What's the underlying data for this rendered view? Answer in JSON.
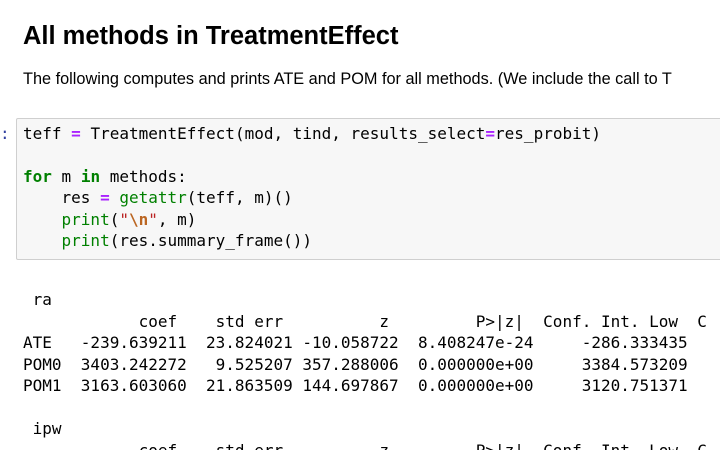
{
  "markdown": {
    "heading": "All methods in TreatmentEffect",
    "intro": "The following computes and prints ATE and POM for all methods. (We include the call to T"
  },
  "cell": {
    "prompt": ":",
    "code_lines": [
      [
        [
          "teff ",
          ""
        ],
        [
          "=",
          "op"
        ],
        [
          " TreatmentEffect(mod, tind, results_select",
          ""
        ],
        [
          "=",
          "op"
        ],
        [
          "res_probit)",
          ""
        ]
      ],
      [],
      [
        [
          "for",
          "kw"
        ],
        [
          " m ",
          ""
        ],
        [
          "in",
          "kw"
        ],
        [
          " methods:",
          ""
        ]
      ],
      [
        [
          "    res ",
          ""
        ],
        [
          "=",
          "op"
        ],
        [
          " ",
          ""
        ],
        [
          "getattr",
          "bi"
        ],
        [
          "(teff, m)()",
          ""
        ]
      ],
      [
        [
          "    ",
          ""
        ],
        [
          "print",
          "bi"
        ],
        [
          "(",
          ""
        ],
        [
          "\"",
          "str"
        ],
        [
          "\\n",
          "esc"
        ],
        [
          "\"",
          "str"
        ],
        [
          ", m)",
          ""
        ]
      ],
      [
        [
          "    ",
          ""
        ],
        [
          "print",
          "bi"
        ],
        [
          "(res.summary_frame())",
          ""
        ]
      ]
    ]
  },
  "output": {
    "lines": [
      " ra",
      "            coef    std err          z         P>|z|  Conf. Int. Low  C",
      "ATE   -239.639211  23.824021 -10.058722  8.408247e-24     -286.333435",
      "POM0  3403.242272   9.525207 357.288006  0.000000e+00     3384.573209",
      "POM1  3163.603060  21.863509 144.697867  0.000000e+00     3120.751371",
      "",
      " ipw",
      "            coef    std err          z         P>|z|  Conf. Int. Low  C"
    ]
  }
}
